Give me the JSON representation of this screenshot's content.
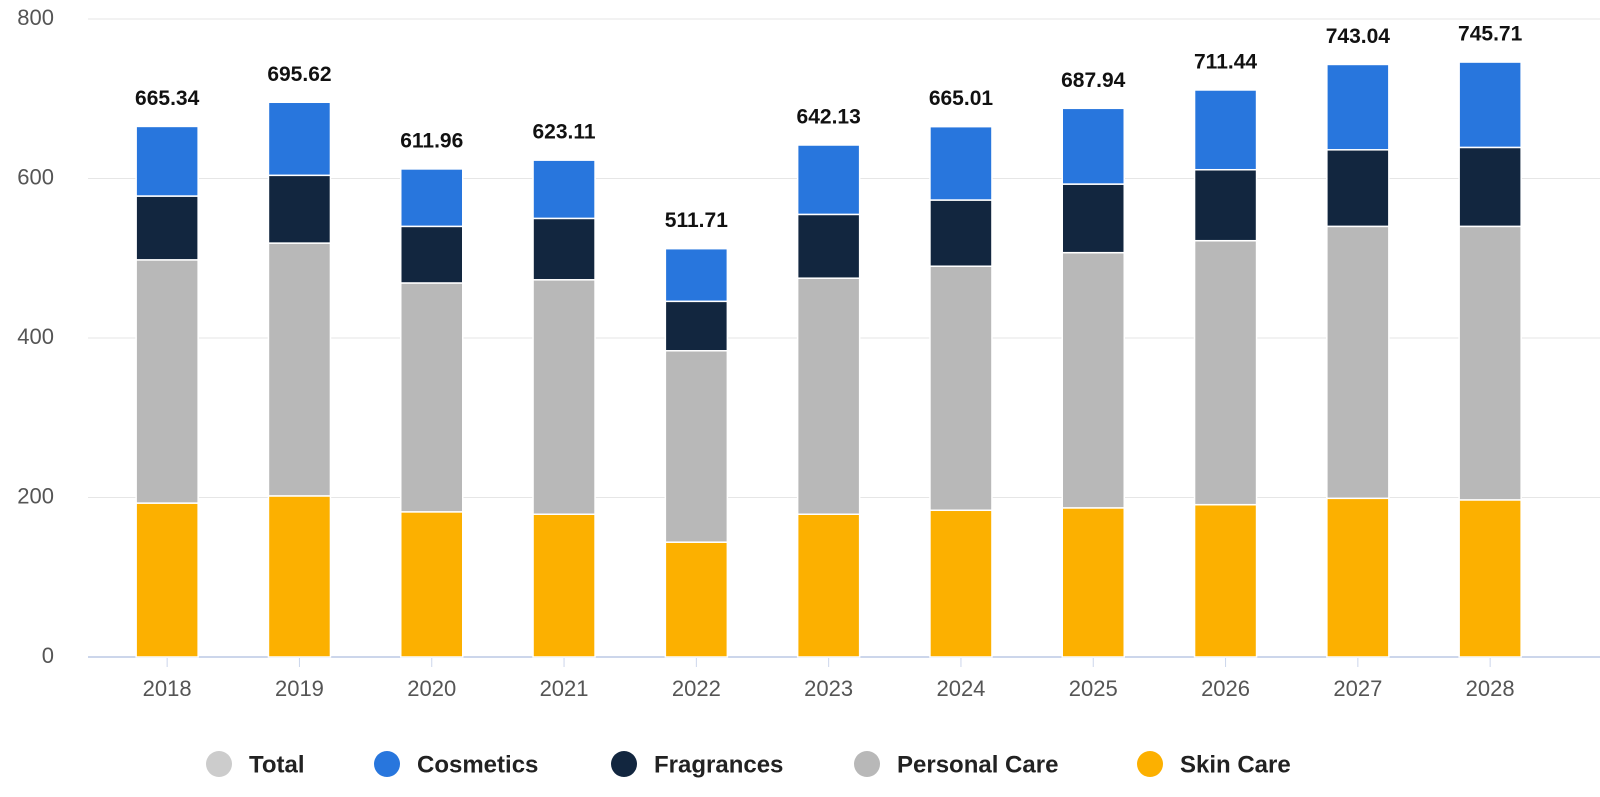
{
  "chart_data": {
    "type": "stacked-bar",
    "categories": [
      "2018",
      "2019",
      "2020",
      "2021",
      "2022",
      "2023",
      "2024",
      "2025",
      "2026",
      "2027",
      "2028"
    ],
    "series": [
      {
        "name": "Total",
        "color": "#cccccc",
        "visible": false,
        "values": [
          665.34,
          695.62,
          611.96,
          623.11,
          511.71,
          642.13,
          665.01,
          687.94,
          711.44,
          743.04,
          745.71
        ]
      },
      {
        "name": "Cosmetics",
        "color": "#2876dd",
        "values": [
          87.3,
          91.6,
          72,
          73,
          66,
          87,
          92,
          95,
          100,
          107,
          107
        ]
      },
      {
        "name": "Fragrances",
        "color": "#12263f",
        "values": [
          80,
          85,
          71,
          77,
          62,
          80,
          83,
          86,
          89,
          96,
          99
        ]
      },
      {
        "name": "Personal Care",
        "color": "#b8b8b8",
        "values": [
          305,
          317,
          287,
          294,
          240,
          296,
          306,
          320,
          331,
          341,
          343
        ]
      },
      {
        "name": "Skin Care",
        "color": "#fcb000",
        "values": [
          193,
          202,
          182,
          179,
          144,
          179,
          184,
          187,
          191,
          199,
          197
        ]
      }
    ],
    "ylim": [
      0,
      800
    ],
    "yticks": [
      0,
      200,
      400,
      600,
      800
    ],
    "grid": true
  }
}
